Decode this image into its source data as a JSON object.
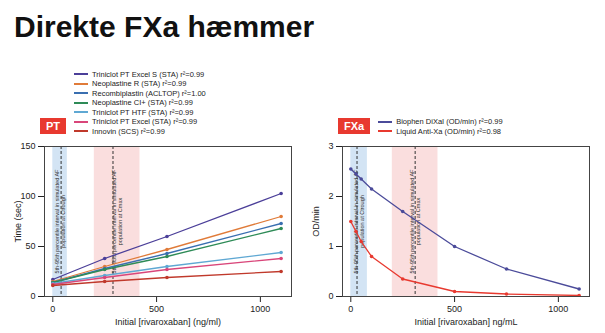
{
  "title": "Direkte FXa hæmmer",
  "chart_data": [
    {
      "type": "line",
      "title": "PT",
      "x_label": "Initial [rivaroxaban] (ng/ml)",
      "y_label": "Time (sec)",
      "xlim": [
        -40,
        1150
      ],
      "xticks": [
        0,
        500,
        1000
      ],
      "ylim": [
        0,
        150
      ],
      "yticks": [
        0,
        50,
        100,
        150
      ],
      "grid": false,
      "legend": "top",
      "marker": "circle",
      "x": [
        0,
        250,
        550,
        1100
      ],
      "series": [
        {
          "name": "Triniclot PT Excel S (STA) r²=0.99",
          "color": "#4b3f99",
          "values": [
            17,
            38,
            60,
            103
          ]
        },
        {
          "name": "Neoplastine R (STA) r²=0.99",
          "color": "#e07b39",
          "values": [
            15,
            30,
            47,
            80
          ]
        },
        {
          "name": "Recombiplastin (ACLTOP) r²=1.00",
          "color": "#3a6fb0",
          "values": [
            14,
            28,
            43,
            73
          ]
        },
        {
          "name": "Neoplastine CI+ (STA) r²=0.99",
          "color": "#2e8b57",
          "values": [
            14,
            27,
            40,
            68
          ]
        },
        {
          "name": "Triniclot PT HTF (STA) r²=0.99",
          "color": "#5fa8d3",
          "values": [
            13,
            21,
            30,
            44
          ]
        },
        {
          "name": "Triniclot PT Excel (STA) r²=0.99",
          "color": "#d9467a",
          "values": [
            12,
            19,
            27,
            38
          ]
        },
        {
          "name": "Innovin (SCS) r²=0.99",
          "color": "#c0392b",
          "values": [
            11,
            15,
            19,
            25
          ]
        }
      ],
      "bands": [
        {
          "label": "5th-95th percentile interval in simulated AF population at Ctrough",
          "x0": 0,
          "x1": 70,
          "line": 40,
          "color": "#9dc3e6"
        },
        {
          "label": "5th-95th percentile interval in simulated AF population at Cmax",
          "x0": 200,
          "x1": 420,
          "line": 290,
          "color": "#f4b6b6"
        }
      ]
    },
    {
      "type": "line",
      "title": "FXa",
      "x_label": "Initial [rivaroxaban] ng/mL",
      "y_label": "OD/min",
      "xlim": [
        -40,
        1150
      ],
      "xticks": [
        0,
        500,
        1000
      ],
      "ylim": [
        0,
        3
      ],
      "yticks": [
        0,
        1,
        2,
        3
      ],
      "grid": false,
      "legend": "top",
      "marker": "circle",
      "x": [
        0,
        25,
        50,
        100,
        250,
        500,
        750,
        1100
      ],
      "series": [
        {
          "name": "Biophen DiXaI (OD/min) r²=0.99",
          "color": "#4b4b9a",
          "values": [
            2.55,
            2.45,
            2.35,
            2.15,
            1.7,
            1.0,
            0.55,
            0.15
          ]
        },
        {
          "name": "Liquid Anti-Xa (OD/min) r²=0.98",
          "color": "#e8392f",
          "values": [
            1.5,
            1.3,
            1.1,
            0.8,
            0.35,
            0.1,
            0.05,
            0.02
          ]
        }
      ],
      "bands": [
        {
          "label": "5th-95th percentile interval in simulated AF population at Ctrough",
          "x0": 0,
          "x1": 80,
          "line": 30,
          "color": "#9dc3e6"
        },
        {
          "label": "5th-95th percentile interval in simulated AF population at Cmax",
          "x0": 200,
          "x1": 420,
          "line": 310,
          "color": "#f4b6b6"
        }
      ]
    }
  ]
}
